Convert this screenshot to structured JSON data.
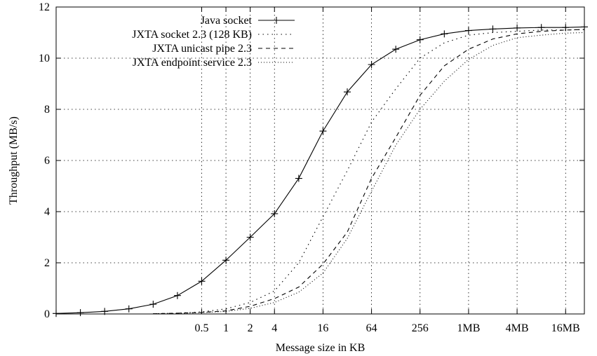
{
  "chart_data": {
    "type": "line",
    "xlabel": "Message size in KB",
    "ylabel": "Throughput (MB/s)",
    "x_scale": "log2",
    "xlim_kb": [
      0.0078125,
      28000
    ],
    "ylim": [
      0,
      12
    ],
    "grid": true,
    "legend_position": "top-center",
    "x_ticks": [
      {
        "value": 0.5,
        "label": "0.5"
      },
      {
        "value": 1,
        "label": "1"
      },
      {
        "value": 2,
        "label": "2"
      },
      {
        "value": 4,
        "label": "4"
      },
      {
        "value": 16,
        "label": "16"
      },
      {
        "value": 64,
        "label": "64"
      },
      {
        "value": 256,
        "label": "256"
      },
      {
        "value": 1024,
        "label": "1MB"
      },
      {
        "value": 4096,
        "label": "4MB"
      },
      {
        "value": 16384,
        "label": "16MB"
      }
    ],
    "y_ticks": [
      {
        "value": 0,
        "label": "0"
      },
      {
        "value": 2,
        "label": "2"
      },
      {
        "value": 4,
        "label": "4"
      },
      {
        "value": 6,
        "label": "6"
      },
      {
        "value": 8,
        "label": "8"
      },
      {
        "value": 10,
        "label": "10"
      },
      {
        "value": 12,
        "label": "12"
      }
    ],
    "series": [
      {
        "name": "Java socket",
        "style": "solid-plus",
        "points": [
          [
            0.0078125,
            0.02
          ],
          [
            0.015625,
            0.05
          ],
          [
            0.03125,
            0.1
          ],
          [
            0.0625,
            0.2
          ],
          [
            0.125,
            0.38
          ],
          [
            0.25,
            0.72
          ],
          [
            0.5,
            1.28
          ],
          [
            1,
            2.1
          ],
          [
            2,
            3.0
          ],
          [
            4,
            3.92
          ],
          [
            8,
            5.3
          ],
          [
            16,
            7.15
          ],
          [
            32,
            8.68
          ],
          [
            64,
            9.75
          ],
          [
            128,
            10.35
          ],
          [
            256,
            10.72
          ],
          [
            512,
            10.95
          ],
          [
            1024,
            11.08
          ],
          [
            2048,
            11.14
          ],
          [
            4096,
            11.18
          ],
          [
            8192,
            11.2
          ],
          [
            16384,
            11.2
          ],
          [
            28000,
            11.22
          ]
        ]
      },
      {
        "name": "JXTA socket 2.3 (128 KB)",
        "style": "dotted",
        "points": [
          [
            0.125,
            0.01
          ],
          [
            0.25,
            0.03
          ],
          [
            0.5,
            0.08
          ],
          [
            1,
            0.2
          ],
          [
            2,
            0.45
          ],
          [
            4,
            0.9
          ],
          [
            8,
            2.0
          ],
          [
            16,
            3.8
          ],
          [
            32,
            5.6
          ],
          [
            64,
            7.5
          ],
          [
            128,
            8.8
          ],
          [
            256,
            10.0
          ],
          [
            512,
            10.6
          ],
          [
            1024,
            10.9
          ],
          [
            2048,
            11.0
          ],
          [
            4096,
            11.05
          ],
          [
            8192,
            11.1
          ],
          [
            16384,
            11.1
          ],
          [
            28000,
            11.12
          ]
        ]
      },
      {
        "name": "JXTA unicast pipe 2.3",
        "style": "dashed",
        "points": [
          [
            0.125,
            0.01
          ],
          [
            0.25,
            0.03
          ],
          [
            0.5,
            0.06
          ],
          [
            1,
            0.12
          ],
          [
            2,
            0.3
          ],
          [
            4,
            0.6
          ],
          [
            8,
            1.05
          ],
          [
            16,
            1.95
          ],
          [
            32,
            3.2
          ],
          [
            64,
            5.3
          ],
          [
            128,
            6.9
          ],
          [
            256,
            8.55
          ],
          [
            512,
            9.7
          ],
          [
            1024,
            10.35
          ],
          [
            2048,
            10.75
          ],
          [
            4096,
            10.95
          ],
          [
            8192,
            11.05
          ],
          [
            16384,
            11.1
          ],
          [
            28000,
            11.12
          ]
        ]
      },
      {
        "name": "JXTA endpoint service 2.3",
        "style": "fine-dotted",
        "points": [
          [
            0.125,
            0.01
          ],
          [
            0.25,
            0.02
          ],
          [
            0.5,
            0.05
          ],
          [
            1,
            0.1
          ],
          [
            2,
            0.22
          ],
          [
            4,
            0.45
          ],
          [
            8,
            0.85
          ],
          [
            16,
            1.6
          ],
          [
            32,
            2.95
          ],
          [
            64,
            4.8
          ],
          [
            128,
            6.6
          ],
          [
            256,
            8.0
          ],
          [
            512,
            9.1
          ],
          [
            1024,
            9.95
          ],
          [
            2048,
            10.5
          ],
          [
            4096,
            10.8
          ],
          [
            8192,
            10.9
          ],
          [
            16384,
            10.98
          ],
          [
            28000,
            11.0
          ]
        ]
      }
    ]
  }
}
